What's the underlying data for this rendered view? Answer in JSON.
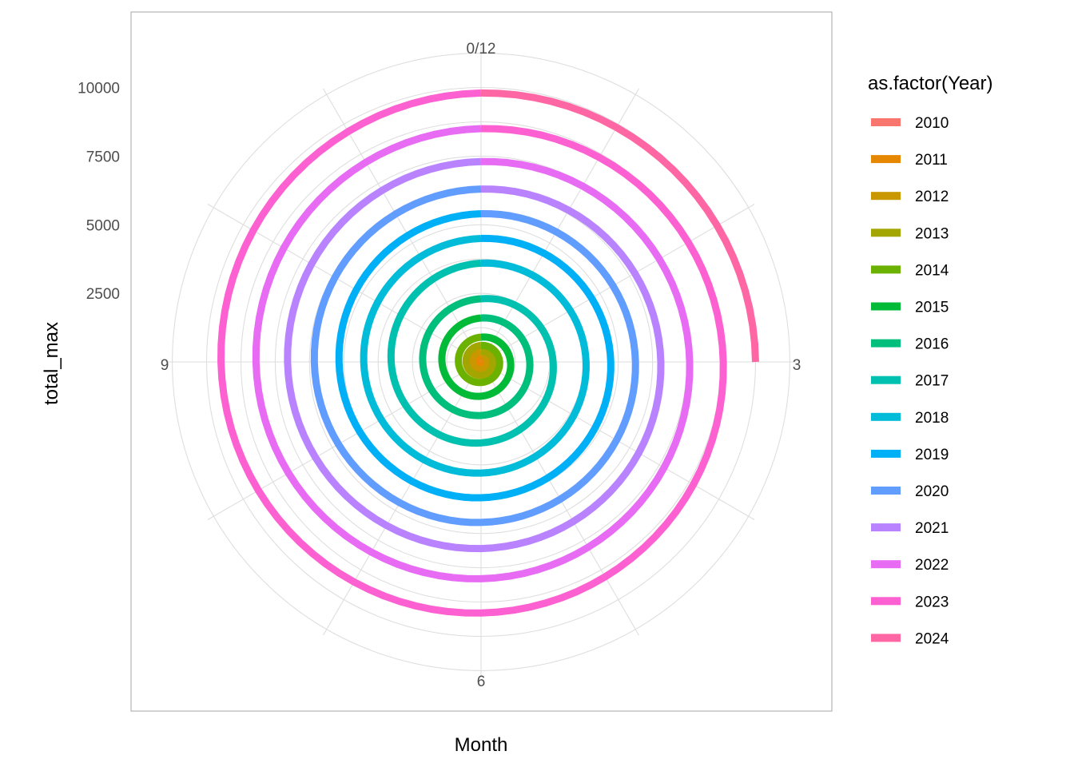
{
  "chart_data": {
    "type": "line",
    "coord": "polar",
    "xlabel": "Month",
    "ylabel": "total_max",
    "theta_ticks": [
      "0/12",
      "3",
      "6",
      "9"
    ],
    "y_ticks": [
      2500,
      5000,
      7500,
      10000
    ],
    "ylim": [
      0,
      11500
    ],
    "grid": true,
    "legend_title": "as.factor(Year)",
    "legend_position": "right",
    "series": [
      {
        "name": "2010",
        "color": "#F8766D",
        "start": 0,
        "end": 80
      },
      {
        "name": "2011",
        "color": "#E58700",
        "start": 80,
        "end": 200
      },
      {
        "name": "2012",
        "color": "#C99800",
        "start": 200,
        "end": 380
      },
      {
        "name": "2013",
        "color": "#A3A500",
        "start": 380,
        "end": 600
      },
      {
        "name": "2014",
        "color": "#6BB100",
        "start": 600,
        "end": 900
      },
      {
        "name": "2015",
        "color": "#00BA38",
        "start": 900,
        "end": 1600
      },
      {
        "name": "2016",
        "color": "#00BF7D",
        "start": 1600,
        "end": 2300
      },
      {
        "name": "2017",
        "color": "#00C0AF",
        "start": 2300,
        "end": 3600
      },
      {
        "name": "2018",
        "color": "#00BCD8",
        "start": 3600,
        "end": 4500
      },
      {
        "name": "2019",
        "color": "#00B0F6",
        "start": 4500,
        "end": 5400
      },
      {
        "name": "2020",
        "color": "#619CFF",
        "start": 5400,
        "end": 6300
      },
      {
        "name": "2021",
        "color": "#B983FF",
        "start": 6300,
        "end": 7300
      },
      {
        "name": "2022",
        "color": "#E76BF3",
        "start": 7300,
        "end": 8500
      },
      {
        "name": "2023",
        "color": "#FD61D1",
        "start": 8500,
        "end": 9800
      },
      {
        "name": "2024",
        "color": "#FF67A4",
        "start": 9800,
        "end": 10000,
        "months": 3
      }
    ]
  }
}
